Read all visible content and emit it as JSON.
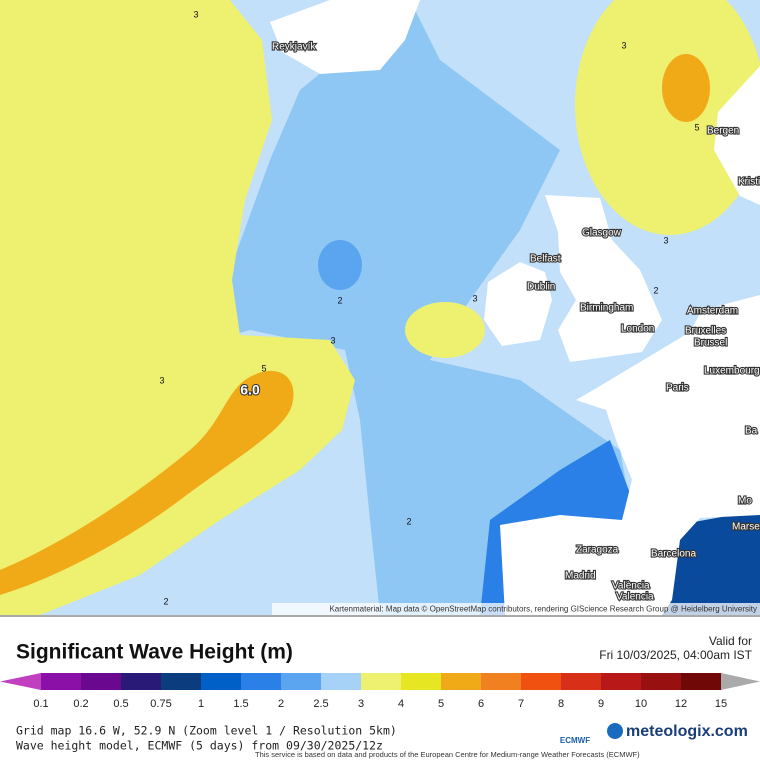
{
  "map": {
    "cities": [
      "Reykjavík",
      "Bergen",
      "Kristi",
      "Glasgow",
      "Belfast",
      "Dublin",
      "Birmingham",
      "London",
      "Amsterdam",
      "Bruxelles",
      "Brussel",
      "Luxembourg",
      "Paris",
      "Zaragoza",
      "Barcelona",
      "Madrid",
      "València",
      "Valencia",
      "Ba",
      "Mo",
      "Marse"
    ],
    "contours": [
      "3",
      "3",
      "3",
      "3",
      "3",
      "3",
      "5",
      "5",
      "2",
      "2",
      "2",
      "2",
      "6.0"
    ],
    "attribution": "Kartenmaterial: Map data © OpenStreetMap contributors, rendering GIScience Research Group @ Heidelberg University"
  },
  "header": {
    "title": "Significant Wave Height (m)",
    "valid_label": "Valid for",
    "valid_time": "Fri 10/03/2025, 04:00am IST"
  },
  "legend": {
    "ticks": [
      0.1,
      0.2,
      0.5,
      0.75,
      1,
      1.5,
      2,
      2.5,
      3,
      4,
      5,
      6,
      7,
      8,
      9,
      10,
      12,
      15
    ],
    "colors": [
      "#8a10a8",
      "#6a0890",
      "#2a1a78",
      "#0a3c7e",
      "#0060c8",
      "#2a80e6",
      "#5aa4f0",
      "#a6d2f8",
      "#eef070",
      "#e6e622",
      "#f0aa18",
      "#f08020",
      "#f05010",
      "#d83018",
      "#b81818",
      "#981010",
      "#700808"
    ],
    "under_color": "#c040c0",
    "over_color": "#aaaaaa"
  },
  "footer": {
    "grid": "Grid map 16.6 W, 52.9 N (Zoom level 1 / Resolution 5km)",
    "model": "Wave height model, ECMWF (5 days) from 09/30/2025/12z",
    "notice": "This service is based on data and products of the European Centre for Medium-range Weather Forecasts (ECMWF)",
    "ecmwf": "ECMWF",
    "brand": "meteologix.com"
  }
}
